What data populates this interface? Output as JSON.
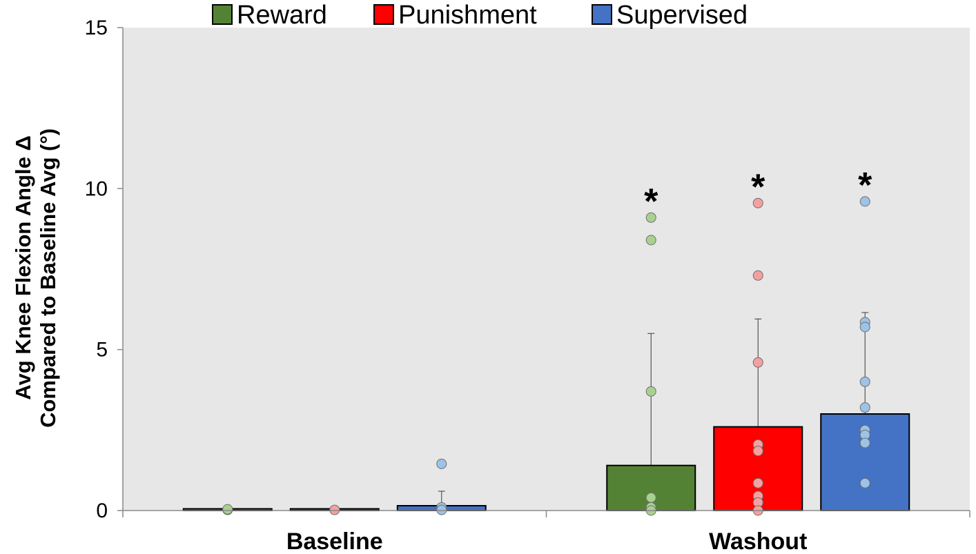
{
  "chart_data": {
    "type": "bar",
    "categories": [
      "Baseline",
      "Washout"
    ],
    "ylabel_line1": "Avg  Knee Flexion Angle Δ",
    "ylabel_line2": "Compared to Baseline Avg  (°)",
    "ylim": [
      0,
      15
    ],
    "yticks": [
      0,
      5,
      10,
      15
    ],
    "grid": false,
    "legend_position": "top",
    "background_color": "#e7e7e7",
    "series": [
      {
        "name": "Reward",
        "color": "#548235",
        "point_color": "#a9d18e",
        "values": [
          0.0,
          1.4
        ],
        "error_upper": [
          0.0,
          5.5
        ],
        "points": [
          [
            0.02,
            0.04
          ],
          [
            9.1,
            8.4,
            3.7,
            0.4,
            0.1,
            0.0
          ]
        ],
        "significance": [
          "",
          "*"
        ]
      },
      {
        "name": "Punishment",
        "color": "#ff0000",
        "point_color": "#f4a0a0",
        "values": [
          0.01,
          2.6
        ],
        "error_upper": [
          0.0,
          5.95
        ],
        "points": [
          [
            0.02
          ],
          [
            9.55,
            7.3,
            4.6,
            2.05,
            1.85,
            0.85,
            0.45,
            0.25,
            0.0
          ]
        ],
        "significance": [
          "",
          "*"
        ]
      },
      {
        "name": "Supervised",
        "color": "#4472c4",
        "point_color": "#9dc3e6",
        "values": [
          0.15,
          3.0
        ],
        "error_upper": [
          0.6,
          6.15
        ],
        "points": [
          [
            1.45,
            0.1,
            0.02
          ],
          [
            9.6,
            5.85,
            5.7,
            4.0,
            3.2,
            2.5,
            2.35,
            2.1,
            0.85
          ]
        ],
        "significance": [
          "",
          "*"
        ]
      }
    ]
  }
}
